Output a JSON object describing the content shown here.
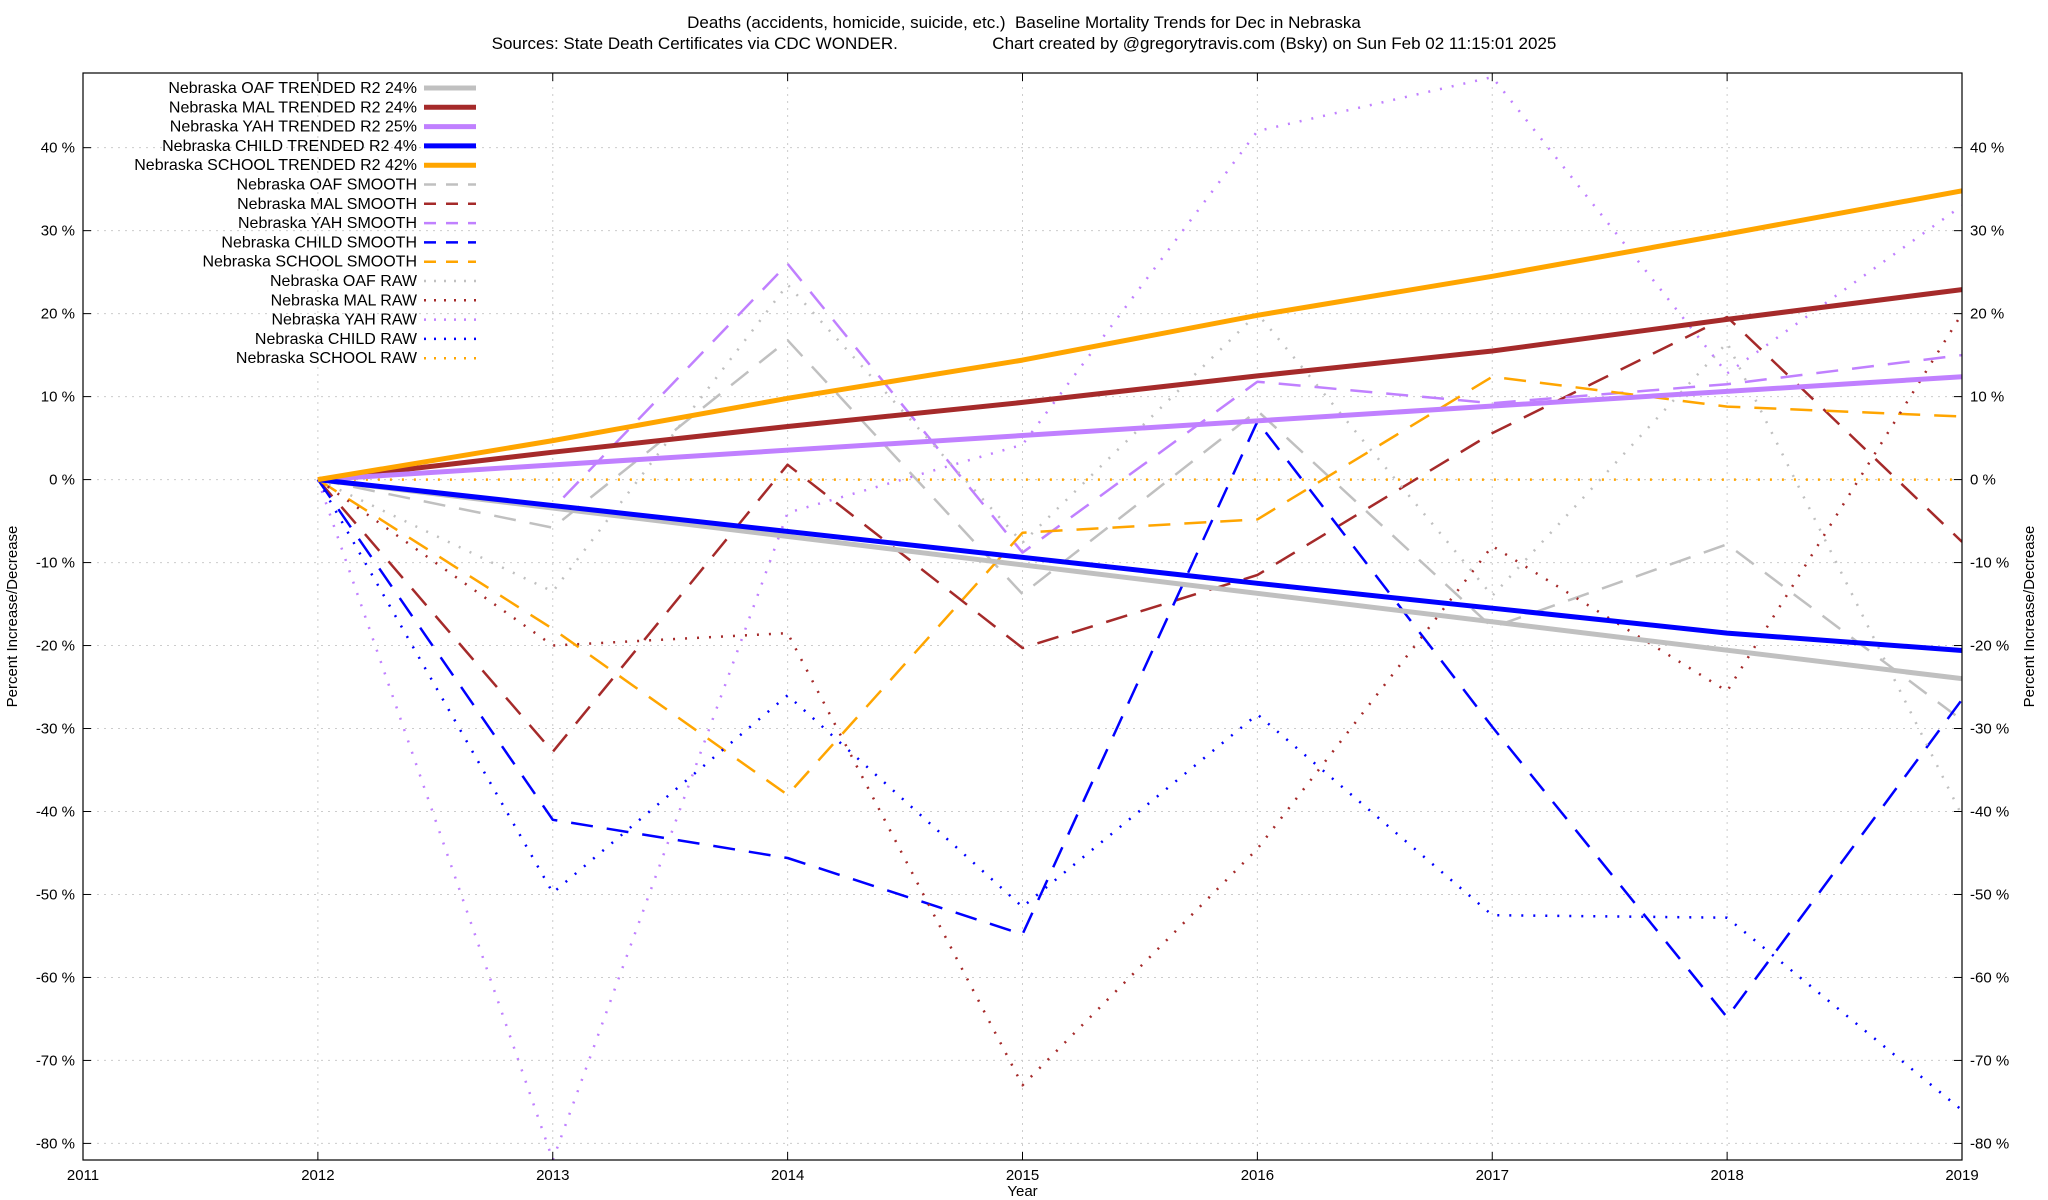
{
  "chart_data": {
    "type": "line",
    "title": "Deaths (accidents, homicide, suicide, etc.)  Baseline Mortality Trends for Dec in Nebraska",
    "subtitle": "Sources: State Death Certificates via CDC WONDER.                    Chart created by @gregorytravis.com (Bsky) on Sun Feb 02 11:15:01 2025",
    "xlabel": "Year",
    "ylabel": "Percent Increase/Decrease",
    "y2label": "Percent Increase/Decrease",
    "xlim": [
      2011,
      2019
    ],
    "ylim": [
      -82,
      49
    ],
    "x_ticks": [
      2011,
      2012,
      2013,
      2014,
      2015,
      2016,
      2017,
      2018,
      2019
    ],
    "y_ticks": [
      -80,
      -70,
      -60,
      -50,
      -40,
      -30,
      -20,
      -10,
      0,
      10,
      20,
      30,
      40
    ],
    "y_tick_suffix": " %",
    "grid": true,
    "legend_position": "top-left",
    "series": [
      {
        "name": "Nebraska OAF TRENDED R2  24%",
        "style": "trend",
        "color": "#c0c0c0",
        "x": [
          2012,
          2019
        ],
        "y": [
          0,
          -24
        ]
      },
      {
        "name": "Nebraska MAL TRENDED R2  24%",
        "style": "trend",
        "color": "#a52a2a",
        "x": [
          2012,
          2013,
          2014,
          2015,
          2016,
          2017,
          2018,
          2019
        ],
        "y": [
          0,
          3.3,
          6.4,
          9.3,
          12.5,
          15.5,
          19.3,
          22.9
        ]
      },
      {
        "name": "Nebraska YAH TRENDED R2  25%",
        "style": "trend",
        "color": "#c080ff",
        "x": [
          2012,
          2019
        ],
        "y": [
          0,
          12.4
        ]
      },
      {
        "name": "Nebraska CHILD TRENDED R2  4%",
        "style": "trend",
        "color": "#0000ff",
        "x": [
          2012,
          2016,
          2017,
          2018,
          2019
        ],
        "y": [
          0,
          -12.5,
          -15.5,
          -18.5,
          -20.6
        ]
      },
      {
        "name": "Nebraska SCHOOL TRENDED R2  42%",
        "style": "trend",
        "color": "#ffa500",
        "x": [
          2012,
          2013,
          2014,
          2015,
          2016,
          2017,
          2018,
          2019
        ],
        "y": [
          0,
          4.7,
          9.8,
          14.4,
          19.8,
          24.5,
          29.6,
          34.8
        ]
      },
      {
        "name": "Nebraska OAF SMOOTH",
        "style": "smooth",
        "color": "#c0c0c0",
        "x": [
          2012,
          2013,
          2014,
          2015,
          2016,
          2017,
          2018,
          2019
        ],
        "y": [
          0,
          -5.8,
          16.8,
          -13.8,
          8.3,
          -17.8,
          -7.8,
          -29
        ]
      },
      {
        "name": "Nebraska MAL SMOOTH",
        "style": "smooth",
        "color": "#a52a2a",
        "x": [
          2012,
          2013,
          2014,
          2015,
          2016,
          2017,
          2018,
          2019
        ],
        "y": [
          0,
          -32.8,
          1.8,
          -20.3,
          -11.5,
          5.6,
          19.6,
          -7.5
        ]
      },
      {
        "name": "Nebraska YAH SMOOTH",
        "style": "smooth",
        "color": "#c080ff",
        "x": [
          2012,
          2013,
          2014,
          2015,
          2016,
          2017,
          2018,
          2019
        ],
        "y": [
          0,
          -3.5,
          26,
          -8.8,
          11.8,
          9.2,
          11.5,
          15
        ]
      },
      {
        "name": "Nebraska CHILD SMOOTH",
        "style": "smooth",
        "color": "#0000ff",
        "x": [
          2012,
          2013,
          2014,
          2015,
          2016,
          2017,
          2018,
          2019
        ],
        "y": [
          0,
          -41,
          -45.6,
          -54.8,
          7,
          -29.8,
          -64.8,
          -26.5
        ]
      },
      {
        "name": "Nebraska SCHOOL SMOOTH",
        "style": "smooth",
        "color": "#ffa500",
        "x": [
          2012,
          2013,
          2014,
          2015,
          2016,
          2017,
          2018,
          2019
        ],
        "y": [
          0,
          -18,
          -38,
          -6.4,
          -4.8,
          12.4,
          8.8,
          7.6
        ]
      },
      {
        "name": "Nebraska OAF RAW",
        "style": "raw",
        "color": "#c0c0c0",
        "x": [
          2012,
          2013,
          2014,
          2015,
          2016,
          2017,
          2018,
          2019
        ],
        "y": [
          0,
          -13.5,
          23.5,
          -7.6,
          20,
          -14,
          16.5,
          -40.5
        ]
      },
      {
        "name": "Nebraska MAL RAW",
        "style": "raw",
        "color": "#a52a2a",
        "x": [
          2012,
          2013,
          2014,
          2015,
          2016,
          2017,
          2018,
          2019
        ],
        "y": [
          0,
          -20,
          -18.5,
          -73,
          -44.5,
          -8,
          -25.5,
          20
        ]
      },
      {
        "name": "Nebraska YAH RAW",
        "style": "raw",
        "color": "#c080ff",
        "x": [
          2012,
          2013,
          2014,
          2015,
          2016,
          2017,
          2018,
          2019
        ],
        "y": [
          0,
          -82,
          -4,
          4.2,
          42,
          48.5,
          12.8,
          33
        ]
      },
      {
        "name": "Nebraska CHILD RAW",
        "style": "raw",
        "color": "#0000ff",
        "x": [
          2012,
          2013,
          2014,
          2015,
          2016,
          2017,
          2018,
          2019
        ],
        "y": [
          0,
          -49.8,
          -26,
          -51.5,
          -28.3,
          -52.5,
          -52.8,
          -76
        ]
      },
      {
        "name": "Nebraska SCHOOL RAW",
        "style": "raw",
        "color": "#ffa500",
        "x": [
          2012,
          2019
        ],
        "y": [
          0,
          0
        ]
      }
    ]
  }
}
